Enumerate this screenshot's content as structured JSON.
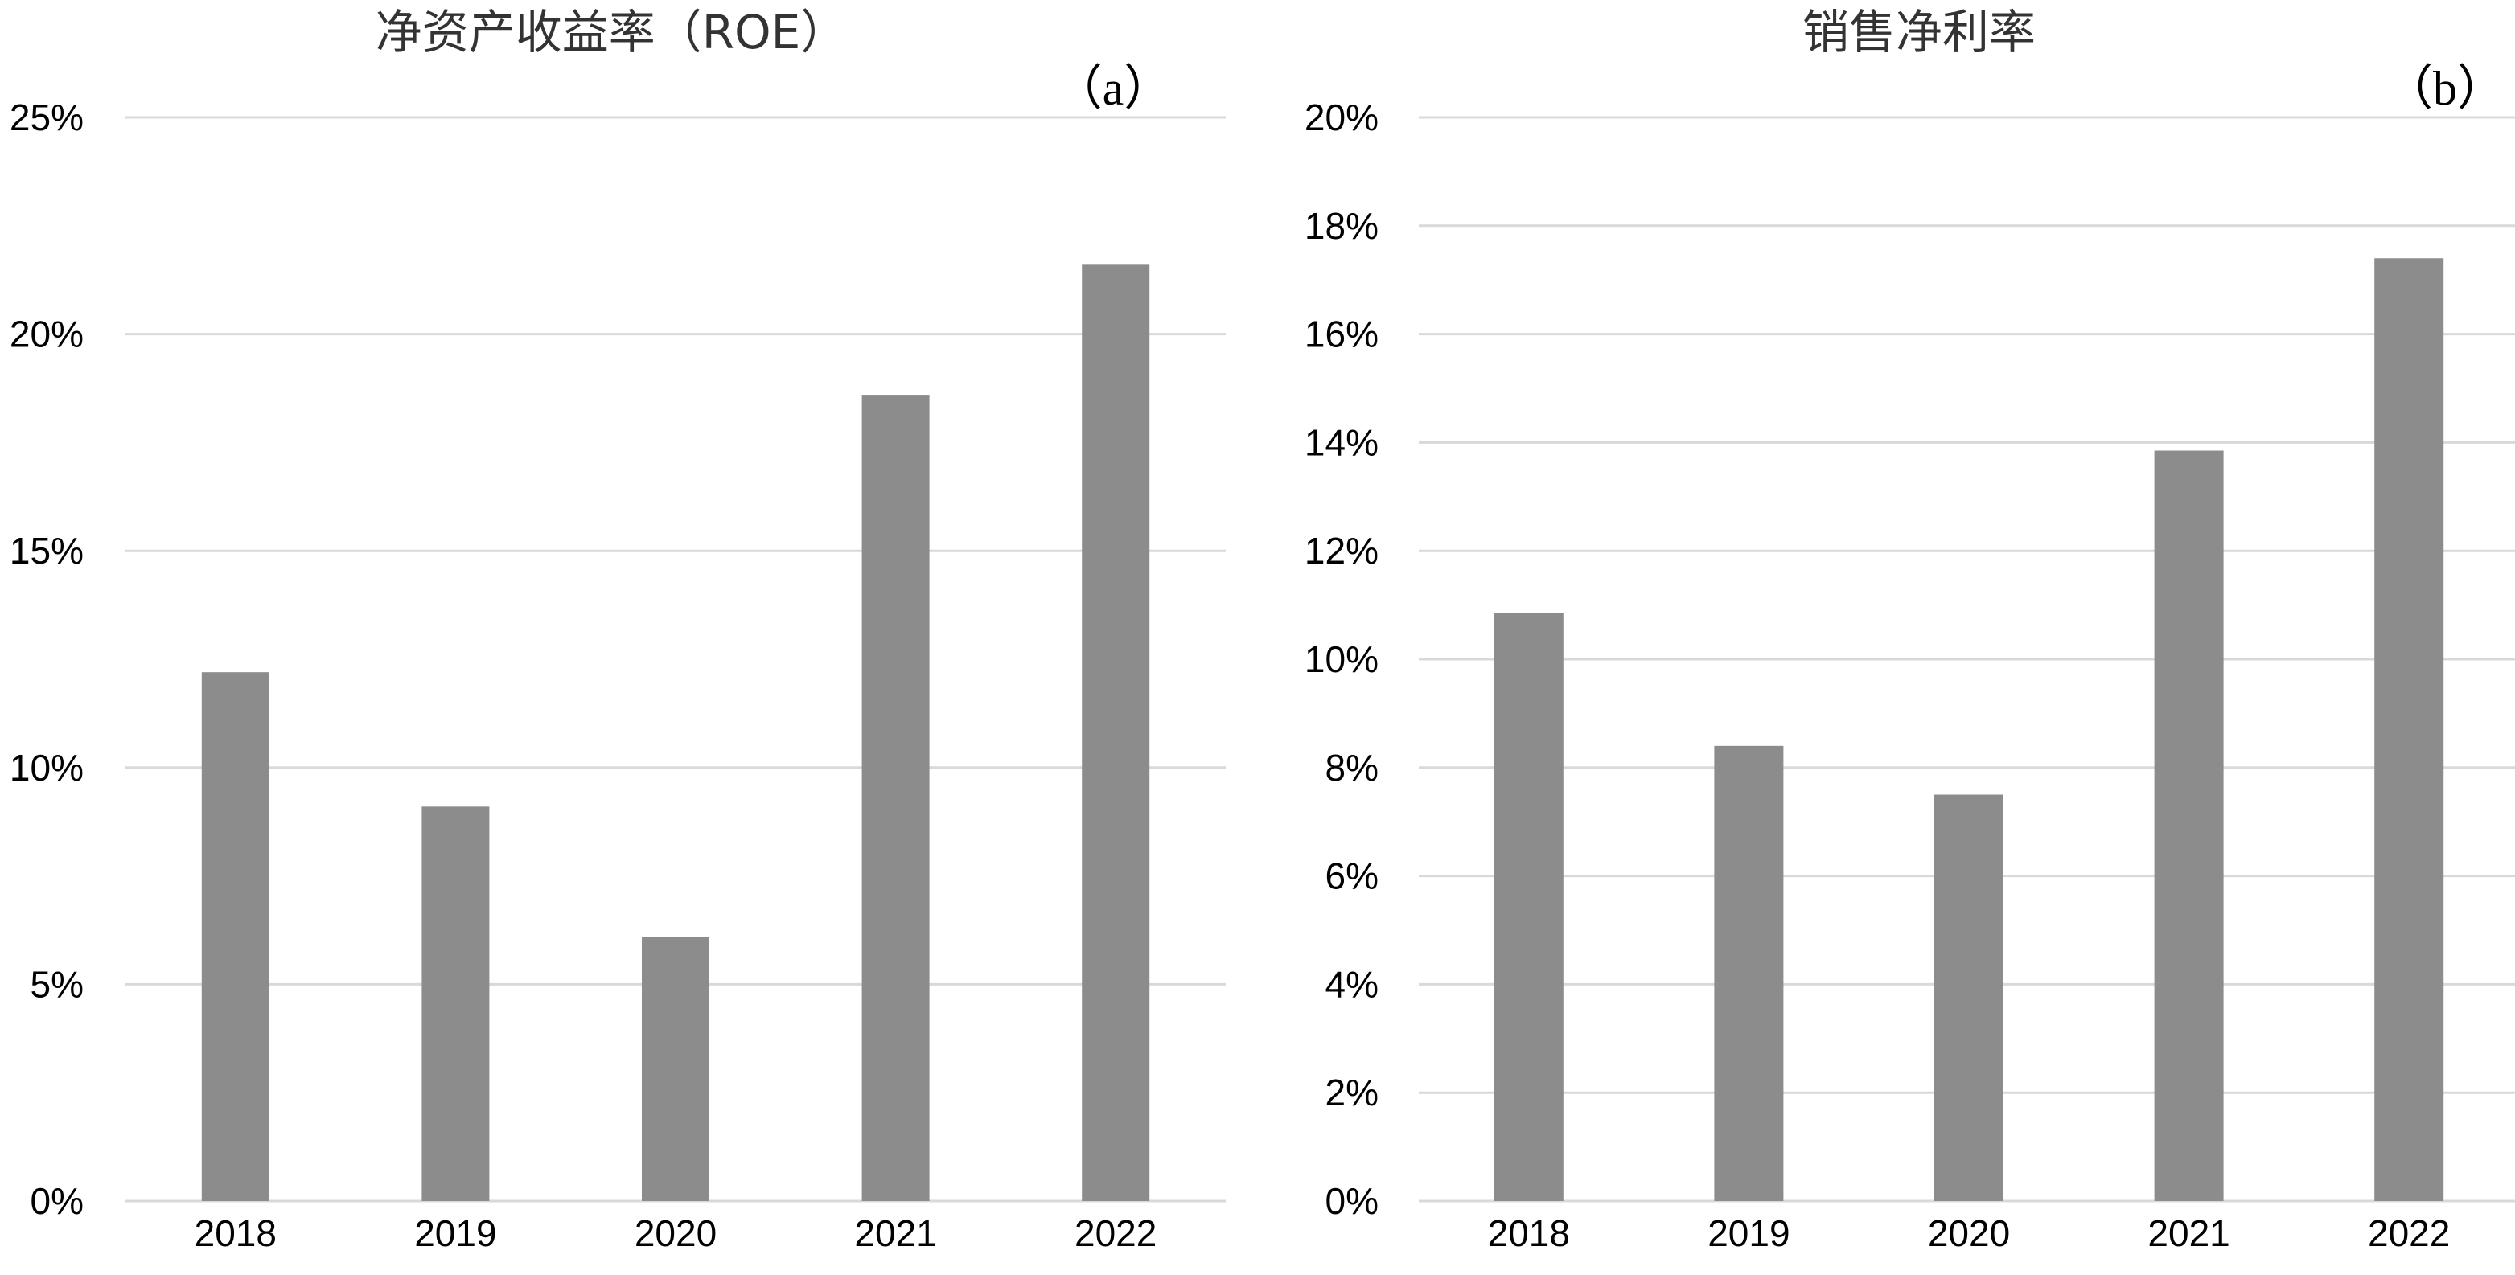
{
  "chart_data": [
    {
      "type": "bar",
      "title": "净资产收益率（ROE）",
      "panel_label": "（a）",
      "categories": [
        "2018",
        "2019",
        "2020",
        "2021",
        "2022"
      ],
      "values": [
        12.2,
        9.1,
        6.1,
        18.6,
        21.6
      ],
      "ylim": [
        0,
        25
      ],
      "yticks": [
        0,
        5,
        10,
        15,
        20,
        25
      ],
      "ytick_labels": [
        "0%",
        "5%",
        "10%",
        "15%",
        "20%",
        "25%"
      ],
      "xlabel": "",
      "ylabel": "",
      "grid": true,
      "bar_color": "#8c8c8c"
    },
    {
      "type": "bar",
      "title": "销售净利率",
      "panel_label": "（b）",
      "categories": [
        "2018",
        "2019",
        "2020",
        "2021",
        "2022"
      ],
      "values": [
        10.85,
        8.4,
        7.5,
        13.85,
        17.4
      ],
      "ylim": [
        0,
        20
      ],
      "yticks": [
        0,
        2,
        4,
        6,
        8,
        10,
        12,
        14,
        16,
        18,
        20
      ],
      "ytick_labels": [
        "0%",
        "2%",
        "4%",
        "6%",
        "8%",
        "10%",
        "12%",
        "14%",
        "16%",
        "18%",
        "20%"
      ],
      "xlabel": "",
      "ylabel": "",
      "grid": true,
      "bar_color": "#8c8c8c"
    }
  ]
}
